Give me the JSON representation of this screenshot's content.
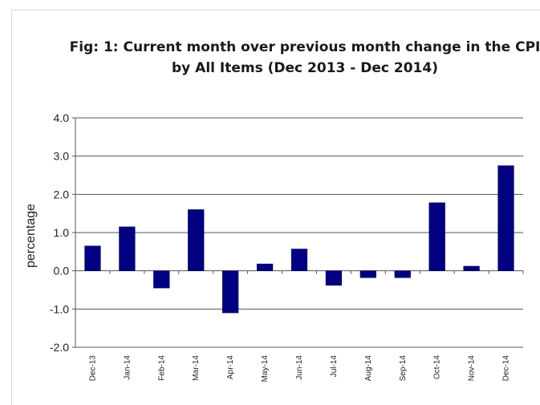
{
  "chart_data": {
    "type": "bar",
    "title_line1": "Fig: 1: Current month over previous month change in the CPI",
    "title_line2": "by All Items (Dec 2013 - Dec 2014)",
    "xlabel": "",
    "ylabel": "percentage",
    "categories": [
      "Dec-13",
      "Jan-14",
      "Feb-14",
      "Mar-14",
      "Apr-14",
      "May-14",
      "Jun-14",
      "Jul-14",
      "Aug-14",
      "Sep-14",
      "Oct-14",
      "Nov-14",
      "Dec-14"
    ],
    "values": [
      0.65,
      1.15,
      -0.45,
      1.6,
      -1.1,
      0.18,
      0.57,
      -0.38,
      -0.18,
      -0.18,
      1.78,
      0.12,
      2.75
    ],
    "ylim": [
      -2.0,
      4.0
    ],
    "yticks": [
      "4.0",
      "3.0",
      "2.0",
      "1.0",
      "0.0",
      "-1.0",
      "-2.0"
    ],
    "ytick_values": [
      4,
      3,
      2,
      1,
      0,
      -1,
      -2
    ],
    "grid": true,
    "legend": "none",
    "bar_color": "#000080"
  }
}
